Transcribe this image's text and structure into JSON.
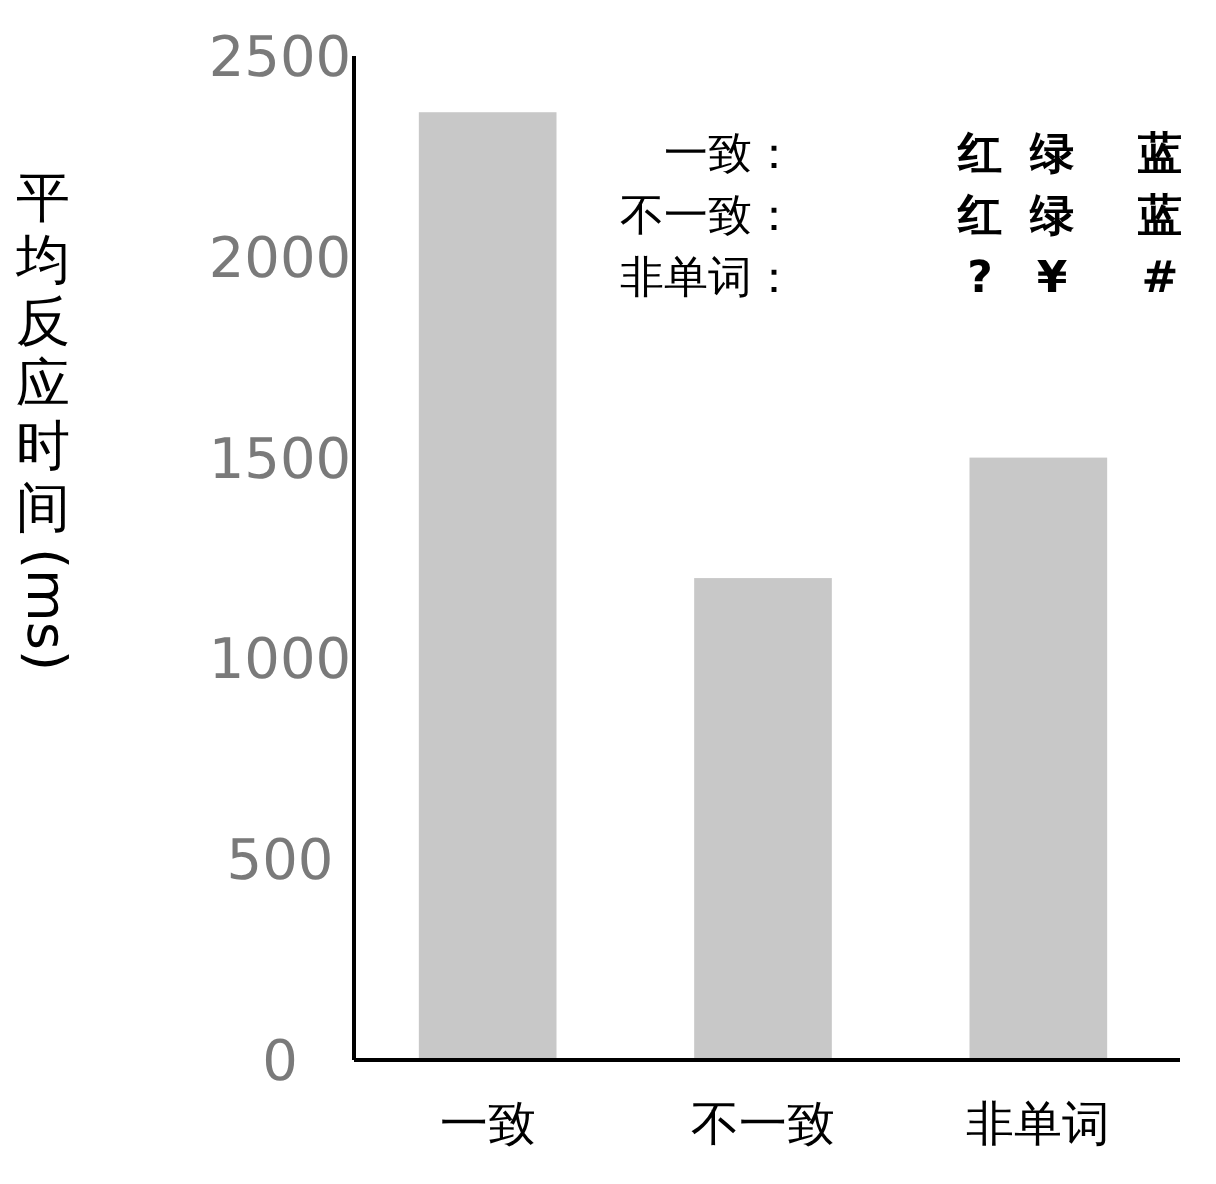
{
  "chart_data": {
    "type": "bar",
    "ylabel": "平均反应时间(ms)",
    "categories": [
      "一致",
      "不一致",
      "非单词"
    ],
    "values": [
      2360,
      1200,
      1500
    ],
    "color": "#c8c8c8",
    "ylim": [
      0,
      2500
    ],
    "yticks": [
      0,
      500,
      1000,
      1500,
      2000,
      2500
    ],
    "grid": false,
    "annotations": [
      "一致：",
      "红",
      "绿",
      "蓝",
      "不一致：",
      "红",
      "绿",
      "蓝",
      "非单词：",
      "?",
      "¥",
      "#"
    ]
  }
}
